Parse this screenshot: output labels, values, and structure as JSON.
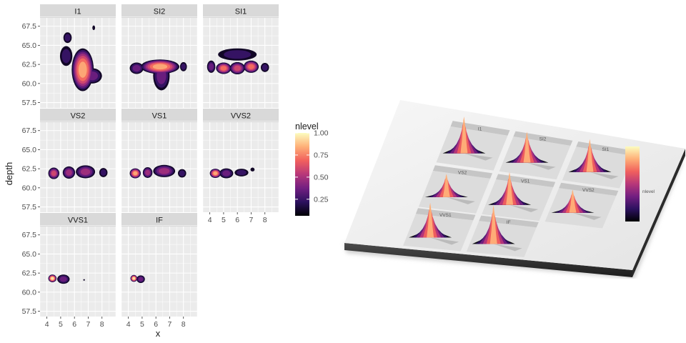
{
  "chart_data": [
    {
      "type": "heatmap",
      "subtype": "faceted 2D density (filled contours)",
      "xlabel": "x",
      "ylabel": "depth",
      "x_ticks": [
        4,
        5,
        6,
        7,
        8
      ],
      "x_tick_labels": [
        "4",
        "5",
        "6",
        "7",
        "8"
      ],
      "y_ticks": [
        57.5,
        60.0,
        62.5,
        65.0,
        67.5
      ],
      "y_tick_labels": [
        "57.5",
        "60.0",
        "62.5",
        "65.0",
        "67.5"
      ],
      "xlim": [
        3.5,
        9.0
      ],
      "ylim": [
        56.8,
        68.6
      ],
      "legend": {
        "title": "nlevel",
        "position": "right",
        "ticks": [
          0.25,
          0.5,
          0.75,
          1.0
        ],
        "tick_labels": [
          "0.25",
          "0.50",
          "0.75",
          "1.00"
        ],
        "colors": [
          "#000004",
          "#2c115f",
          "#721f81",
          "#b73779",
          "#f1605d",
          "#feb078",
          "#fcfdbf"
        ]
      },
      "facets": [
        {
          "label": "I1",
          "blobs": [
            [
              6.6,
              61.8,
              0.8,
              2.8,
              0.95
            ],
            [
              5.4,
              63.6,
              0.45,
              1.3,
              0.35
            ],
            [
              7.3,
              61.0,
              0.7,
              1.0,
              0.4
            ],
            [
              5.5,
              66.0,
              0.3,
              0.7,
              0.25
            ],
            [
              7.4,
              67.3,
              0.1,
              0.3,
              0.2
            ]
          ]
        },
        {
          "label": "SI2",
          "blobs": [
            [
              6.3,
              62.2,
              1.4,
              0.95,
              0.9
            ],
            [
              6.4,
              61.0,
              0.6,
              1.9,
              0.45
            ],
            [
              4.6,
              62.0,
              0.5,
              0.75,
              0.4
            ],
            [
              8.0,
              62.2,
              0.25,
              0.6,
              0.3
            ]
          ]
        },
        {
          "label": "SI1",
          "blobs": [
            [
              5.0,
              62.0,
              0.55,
              0.75,
              0.8
            ],
            [
              6.0,
              62.0,
              0.55,
              0.8,
              0.7
            ],
            [
              7.0,
              62.2,
              0.55,
              0.8,
              0.8
            ],
            [
              4.1,
              62.2,
              0.3,
              0.8,
              0.4
            ],
            [
              8.0,
              62.1,
              0.3,
              0.6,
              0.35
            ],
            [
              6.0,
              63.8,
              1.4,
              0.8,
              0.3
            ]
          ]
        },
        {
          "label": "VS2",
          "blobs": [
            [
              4.5,
              61.9,
              0.4,
              0.75,
              0.7
            ],
            [
              5.6,
              62.0,
              0.45,
              0.8,
              0.55
            ],
            [
              6.8,
              62.1,
              0.7,
              0.85,
              0.55
            ],
            [
              8.1,
              62.0,
              0.3,
              0.6,
              0.35
            ]
          ]
        },
        {
          "label": "VS1",
          "blobs": [
            [
              4.5,
              61.9,
              0.4,
              0.65,
              0.9
            ],
            [
              5.4,
              62.0,
              0.35,
              0.7,
              0.55
            ],
            [
              6.6,
              62.2,
              0.8,
              0.8,
              0.5
            ],
            [
              7.9,
              61.9,
              0.3,
              0.55,
              0.35
            ]
          ]
        },
        {
          "label": "VVS2",
          "blobs": [
            [
              4.4,
              61.9,
              0.4,
              0.6,
              0.95
            ],
            [
              5.2,
              61.9,
              0.5,
              0.65,
              0.45
            ],
            [
              6.3,
              62.0,
              0.5,
              0.5,
              0.3
            ],
            [
              7.1,
              62.4,
              0.15,
              0.25,
              0.2
            ]
          ]
        },
        {
          "label": "VVS1",
          "blobs": [
            [
              4.4,
              61.8,
              0.3,
              0.5,
              1.0
            ],
            [
              5.2,
              61.7,
              0.45,
              0.6,
              0.4
            ],
            [
              6.7,
              61.6,
              0.06,
              0.1,
              0.2
            ]
          ]
        },
        {
          "label": "IF",
          "blobs": [
            [
              4.4,
              61.8,
              0.25,
              0.45,
              1.0
            ],
            [
              4.9,
              61.7,
              0.3,
              0.5,
              0.4
            ]
          ]
        }
      ]
    },
    {
      "type": "other",
      "subtype": "3D rendering of the same faceted density plot (facet heights = nlevel)",
      "facet_labels": [
        "I1",
        "SI2",
        "SI1",
        "VS2",
        "VS1",
        "VVS2",
        "VVS1",
        "IF"
      ],
      "legend_title": "nlevel"
    }
  ]
}
